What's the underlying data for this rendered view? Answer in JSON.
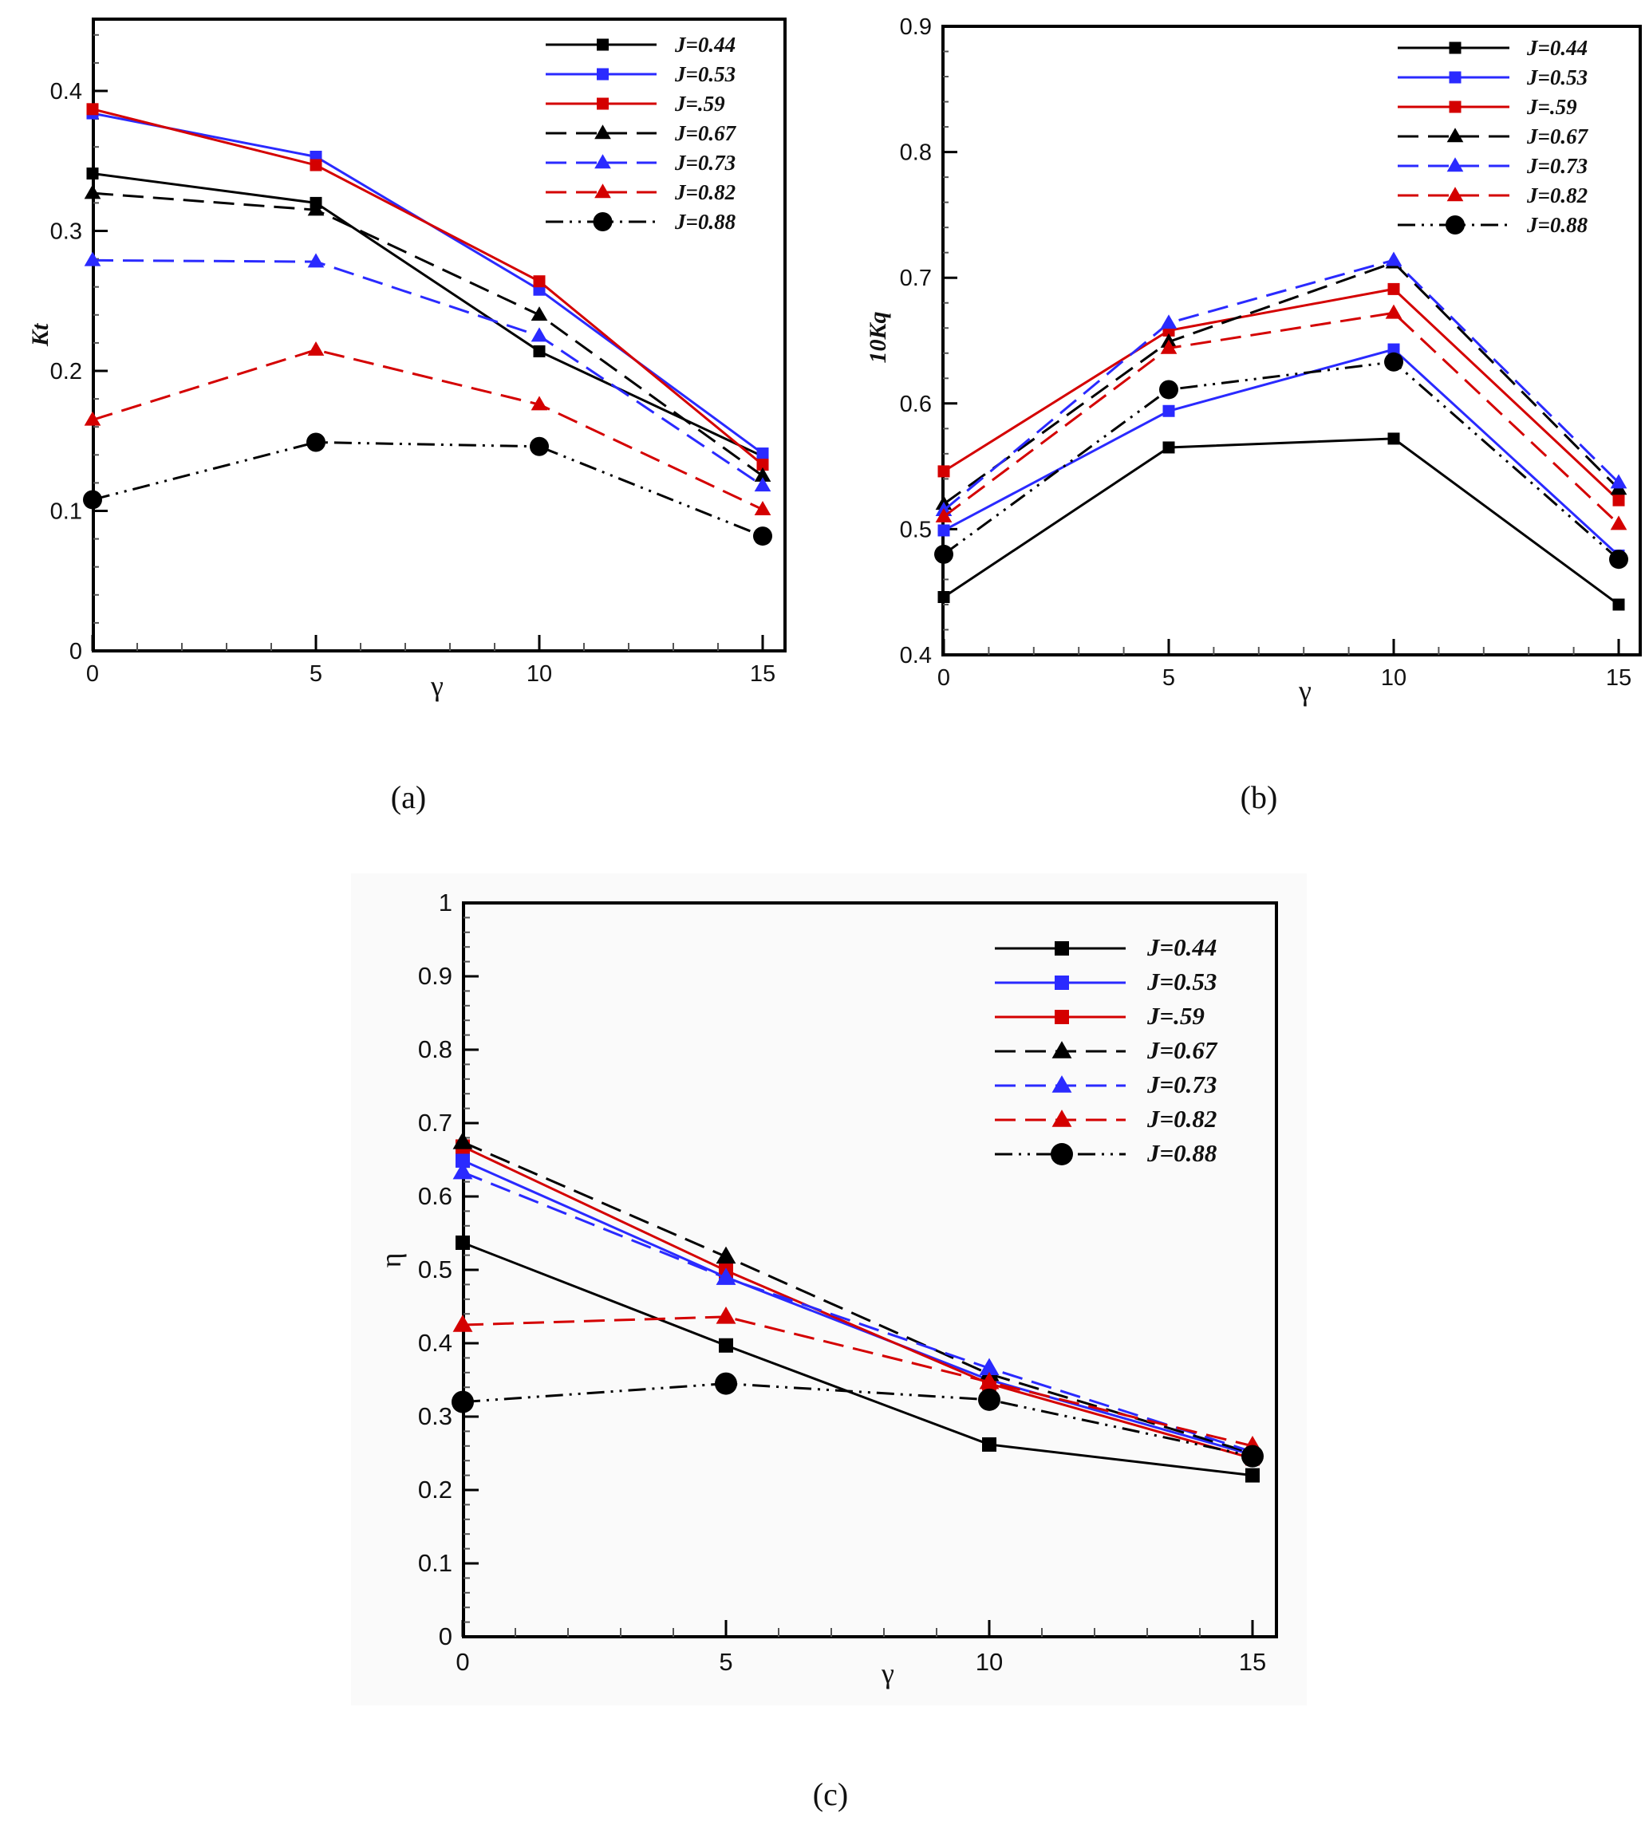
{
  "chart_data": [
    {
      "type": "line",
      "panel": "(a)",
      "xlabel": "γ",
      "ylabel": "Kt",
      "x": [
        0,
        5,
        10,
        15
      ],
      "xticks": [
        "0",
        "5",
        "10",
        "15"
      ],
      "yticks": [
        "0",
        "0.1",
        "0.2",
        "0.3",
        "0.4"
      ],
      "xlim": [
        0,
        15.5
      ],
      "ylim": [
        0,
        0.45
      ],
      "legend_position": "top-right",
      "series": [
        {
          "name": "J=0.44",
          "color": "#000000",
          "dash": "solid",
          "marker": "square",
          "values": [
            0.341,
            0.32,
            0.214,
            0.139
          ]
        },
        {
          "name": "J=0.53",
          "color": "#2a2aff",
          "dash": "solid",
          "marker": "square",
          "values": [
            0.384,
            0.353,
            0.258,
            0.141
          ]
        },
        {
          "name": "J=.59",
          "color": "#d40000",
          "dash": "solid",
          "marker": "square",
          "values": [
            0.387,
            0.347,
            0.264,
            0.133
          ]
        },
        {
          "name": "J=0.67",
          "color": "#000000",
          "dash": "dash",
          "marker": "triangle",
          "values": [
            0.327,
            0.315,
            0.24,
            0.125
          ]
        },
        {
          "name": "J=0.73",
          "color": "#2a2aff",
          "dash": "dash",
          "marker": "triangle",
          "values": [
            0.279,
            0.278,
            0.225,
            0.118
          ]
        },
        {
          "name": "J=0.82",
          "color": "#d40000",
          "dash": "dash",
          "marker": "triangle",
          "values": [
            0.165,
            0.215,
            0.176,
            0.101
          ]
        },
        {
          "name": "J=0.88",
          "color": "#000000",
          "dash": "dashdotdot",
          "marker": "circle",
          "values": [
            0.108,
            0.149,
            0.146,
            0.082
          ]
        }
      ]
    },
    {
      "type": "line",
      "panel": "(b)",
      "xlabel": "γ",
      "ylabel": "10Kq",
      "x": [
        0,
        5,
        10,
        15
      ],
      "xticks": [
        "0",
        "5",
        "10",
        "15"
      ],
      "yticks": [
        "0.4",
        "0.5",
        "0.6",
        "0.7",
        "0.8",
        "0.9"
      ],
      "xlim": [
        0,
        15.5
      ],
      "ylim": [
        0.4,
        0.9
      ],
      "legend_position": "top-right",
      "series": [
        {
          "name": "J=0.44",
          "color": "#000000",
          "dash": "solid",
          "marker": "square",
          "values": [
            0.446,
            0.565,
            0.572,
            0.44
          ]
        },
        {
          "name": "J=0.53",
          "color": "#2a2aff",
          "dash": "solid",
          "marker": "square",
          "values": [
            0.499,
            0.594,
            0.643,
            0.479
          ]
        },
        {
          "name": "J=.59",
          "color": "#d40000",
          "dash": "solid",
          "marker": "square",
          "values": [
            0.546,
            0.658,
            0.691,
            0.523
          ]
        },
        {
          "name": "J=0.67",
          "color": "#000000",
          "dash": "dash",
          "marker": "triangle",
          "values": [
            0.52,
            0.649,
            0.712,
            0.532
          ]
        },
        {
          "name": "J=0.73",
          "color": "#2a2aff",
          "dash": "dash",
          "marker": "triangle",
          "values": [
            0.515,
            0.664,
            0.714,
            0.537
          ]
        },
        {
          "name": "J=0.82",
          "color": "#d40000",
          "dash": "dash",
          "marker": "triangle",
          "values": [
            0.51,
            0.644,
            0.672,
            0.504
          ]
        },
        {
          "name": "J=0.88",
          "color": "#000000",
          "dash": "dashdotdot",
          "marker": "circle",
          "values": [
            0.48,
            0.611,
            0.633,
            0.476
          ]
        }
      ]
    },
    {
      "type": "line",
      "panel": "(c)",
      "xlabel": "γ",
      "ylabel": "η",
      "x": [
        0,
        5,
        10,
        15
      ],
      "xticks": [
        "0",
        "5",
        "10",
        "15"
      ],
      "yticks": [
        "0",
        "0.1",
        "0.2",
        "0.3",
        "0.4",
        "0.5",
        "0.6",
        "0.7",
        "0.8",
        "0.9",
        "1"
      ],
      "xlim": [
        0,
        15.5
      ],
      "ylim": [
        0,
        1
      ],
      "legend_position": "top-right",
      "series": [
        {
          "name": "J=0.44",
          "color": "#000000",
          "dash": "solid",
          "marker": "square",
          "values": [
            0.537,
            0.397,
            0.262,
            0.22
          ]
        },
        {
          "name": "J=0.53",
          "color": "#2a2aff",
          "dash": "solid",
          "marker": "square",
          "values": [
            0.649,
            0.49,
            0.35,
            0.248
          ]
        },
        {
          "name": "J=.59",
          "color": "#d40000",
          "dash": "solid",
          "marker": "square",
          "values": [
            0.668,
            0.499,
            0.345,
            0.243
          ]
        },
        {
          "name": "J=0.67",
          "color": "#000000",
          "dash": "dash",
          "marker": "triangle",
          "values": [
            0.674,
            0.518,
            0.358,
            0.25
          ]
        },
        {
          "name": "J=0.73",
          "color": "#2a2aff",
          "dash": "dash",
          "marker": "triangle",
          "values": [
            0.633,
            0.489,
            0.366,
            0.252
          ]
        },
        {
          "name": "J=0.82",
          "color": "#d40000",
          "dash": "dash",
          "marker": "triangle",
          "values": [
            0.425,
            0.436,
            0.347,
            0.26
          ]
        },
        {
          "name": "J=0.88",
          "color": "#000000",
          "dash": "dashdotdot",
          "marker": "circle",
          "values": [
            0.32,
            0.345,
            0.323,
            0.246
          ]
        }
      ]
    }
  ]
}
